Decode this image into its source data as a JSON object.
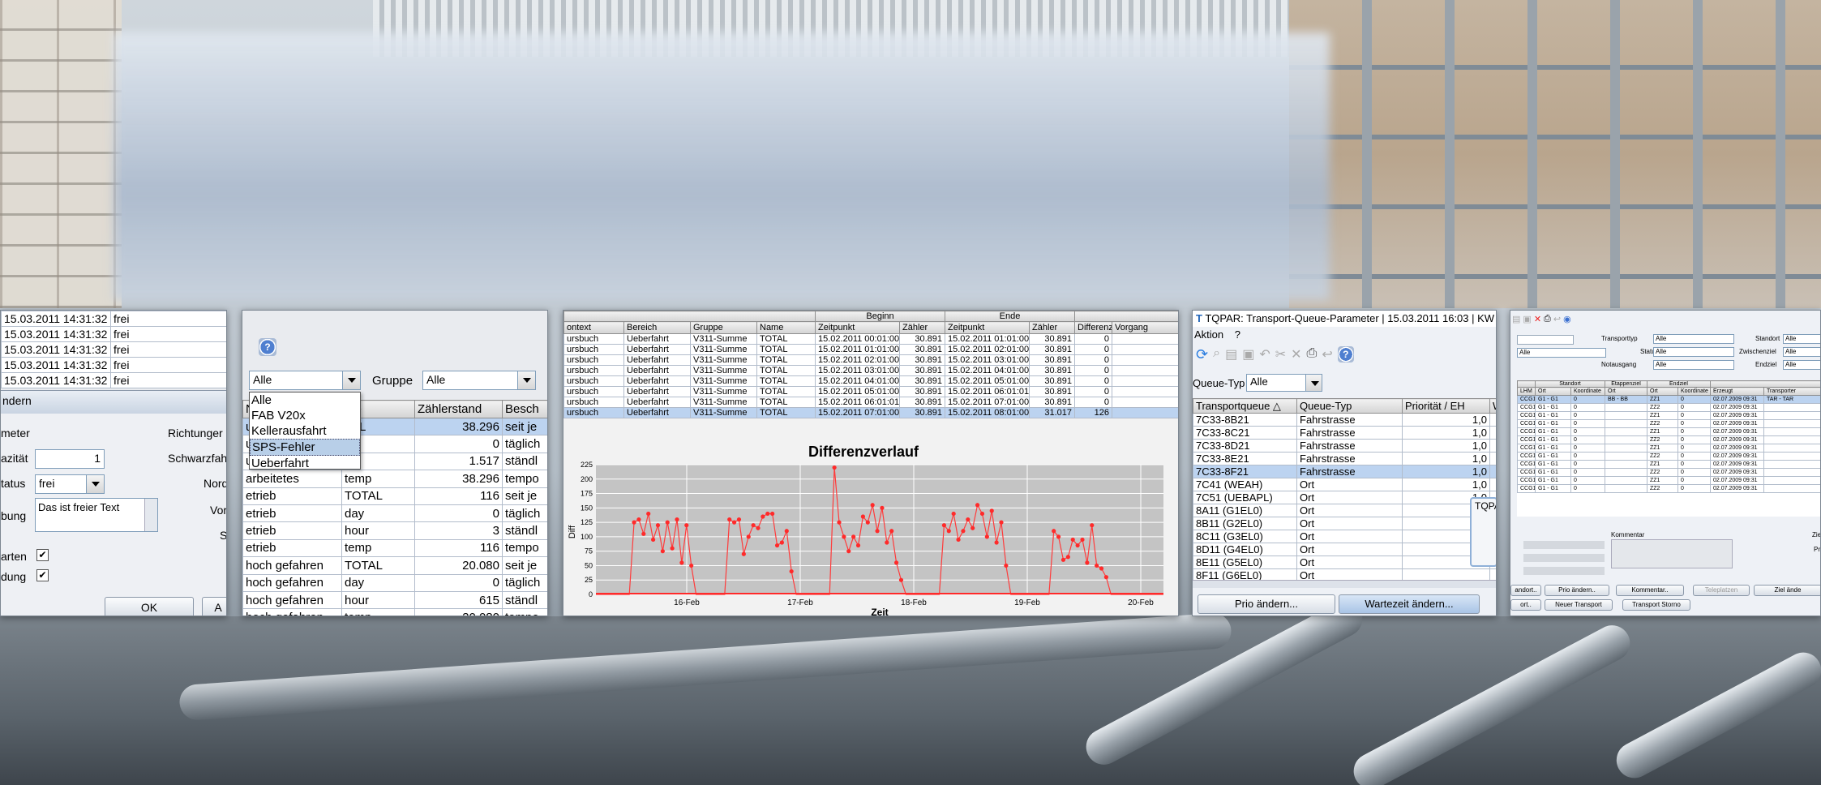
{
  "w1": {
    "top_rows": [
      {
        "date": "15.03.2011 14:31:32",
        "s": "frei"
      },
      {
        "date": "15.03.2011 14:31:32",
        "s": "frei"
      },
      {
        "date": "15.03.2011 14:31:32",
        "s": "frei"
      },
      {
        "date": "15.03.2011 14:31:32",
        "s": "frei"
      },
      {
        "date": "15.03.2011 14:31:32",
        "s": "frei"
      }
    ],
    "dialog_title": "ndern",
    "labels": {
      "meter": "meter",
      "kap": "azität",
      "status": "tatus",
      "bung": "bung",
      "arten": "arten",
      "dung": "dung",
      "richtung": "Richtunger",
      "schwarz": "Schwarzfah",
      "nord": "Nord",
      "vor": "Vor",
      "s": "S"
    },
    "kap_value": "1",
    "status_value": "frei",
    "text_value": "Das ist freier Text",
    "ok": "OK",
    "a": "A"
  },
  "w2": {
    "combo1": "Alle",
    "gruppe_label": "Gruppe",
    "combo2": "Alle",
    "dropdown": [
      "Alle",
      "FAB V20x",
      "Kellerausfahrt",
      "SPS-Fehler",
      "Ueberfahrt"
    ],
    "dropdown_selected": 3,
    "headers": [
      "Na",
      "me",
      "Zählerstand",
      "Besch"
    ],
    "rows": [
      [
        "ue",
        "TAL",
        "38.296",
        "seit je"
      ],
      [
        "ue",
        "",
        "0",
        "täglich"
      ],
      [
        "ue",
        "ur",
        "1.517",
        "ständl"
      ],
      [
        "arbeitetes",
        "temp",
        "38.296",
        "tempo"
      ],
      [
        "etrieb",
        "TOTAL",
        "116",
        "seit je"
      ],
      [
        "etrieb",
        "day",
        "0",
        "täglich"
      ],
      [
        "etrieb",
        "hour",
        "3",
        "ständl"
      ],
      [
        "etrieb",
        "temp",
        "116",
        "tempo"
      ],
      [
        "hoch gefahren",
        "TOTAL",
        "20.080",
        "seit je"
      ],
      [
        "hoch gefahren",
        "day",
        "0",
        "täglich"
      ],
      [
        "hoch gefahren",
        "hour",
        "615",
        "ständl"
      ],
      [
        "hoch gefahren",
        "temp",
        "20.080",
        "tempo"
      ]
    ]
  },
  "w3": {
    "group_headers": [
      "Beginn",
      "Ende"
    ],
    "headers": [
      "ontext",
      "Bereich",
      "Gruppe",
      "Name",
      "Zeitpunkt",
      "Zähler",
      "Zeitpunkt",
      "Zähler",
      "Differenz",
      "Vorgang"
    ],
    "rows": [
      [
        "ursbuch",
        "Ueberfahrt",
        "V311-Summe",
        "TOTAL",
        "15.02.2011 00:01:00",
        "30.891",
        "15.02.2011 01:01:00",
        "30.891",
        "0",
        ""
      ],
      [
        "ursbuch",
        "Ueberfahrt",
        "V311-Summe",
        "TOTAL",
        "15.02.2011 01:01:00",
        "30.891",
        "15.02.2011 02:01:00",
        "30.891",
        "0",
        ""
      ],
      [
        "ursbuch",
        "Ueberfahrt",
        "V311-Summe",
        "TOTAL",
        "15.02.2011 02:01:00",
        "30.891",
        "15.02.2011 03:01:00",
        "30.891",
        "0",
        ""
      ],
      [
        "ursbuch",
        "Ueberfahrt",
        "V311-Summe",
        "TOTAL",
        "15.02.2011 03:01:00",
        "30.891",
        "15.02.2011 04:01:00",
        "30.891",
        "0",
        ""
      ],
      [
        "ursbuch",
        "Ueberfahrt",
        "V311-Summe",
        "TOTAL",
        "15.02.2011 04:01:00",
        "30.891",
        "15.02.2011 05:01:00",
        "30.891",
        "0",
        ""
      ],
      [
        "ursbuch",
        "Ueberfahrt",
        "V311-Summe",
        "TOTAL",
        "15.02.2011 05:01:00",
        "30.891",
        "15.02.2011 06:01:01",
        "30.891",
        "0",
        ""
      ],
      [
        "ursbuch",
        "Ueberfahrt",
        "V311-Summe",
        "TOTAL",
        "15.02.2011 06:01:01",
        "30.891",
        "15.02.2011 07:01:00",
        "30.891",
        "0",
        ""
      ],
      [
        "ursbuch",
        "Ueberfahrt",
        "V311-Summe",
        "TOTAL",
        "15.02.2011 07:01:00",
        "30.891",
        "15.02.2011 08:01:00",
        "31.017",
        "126",
        ""
      ]
    ]
  },
  "chart_data": {
    "type": "line",
    "title": "Differenzverlauf",
    "xlabel": "Zeit",
    "ylabel": "Diff",
    "ylim": [
      0,
      225
    ],
    "yticks": [
      0,
      25,
      50,
      75,
      100,
      125,
      150,
      175,
      200,
      225
    ],
    "xticks": [
      {
        "label": "16-Feb",
        "day": 1
      },
      {
        "label": "17-Feb",
        "day": 2
      },
      {
        "label": "18-Feb",
        "day": 3
      },
      {
        "label": "19-Feb",
        "day": 4
      },
      {
        "label": "20-Feb",
        "day": 5
      }
    ],
    "series": [
      {
        "values": [
          0,
          0,
          0,
          0,
          0,
          0,
          0,
          0,
          125,
          130,
          105,
          140,
          95,
          120,
          75,
          125,
          80,
          130,
          55,
          120,
          50,
          0,
          0,
          0,
          0,
          0,
          0,
          0,
          130,
          125,
          130,
          70,
          100,
          120,
          115,
          135,
          140,
          140,
          85,
          90,
          110,
          40,
          0,
          0,
          0,
          0,
          0,
          0,
          0,
          0,
          220,
          125,
          100,
          75,
          100,
          85,
          135,
          125,
          155,
          110,
          150,
          90,
          110,
          55,
          25,
          0,
          0,
          0,
          0,
          0,
          0,
          0,
          0,
          120,
          110,
          140,
          95,
          110,
          130,
          115,
          155,
          140,
          100,
          145,
          90,
          125,
          50,
          0,
          0,
          0,
          0,
          0,
          0,
          0,
          0,
          0,
          110,
          100,
          60,
          65,
          95,
          85,
          95,
          55,
          120,
          50,
          45,
          30,
          0,
          0,
          0,
          0,
          0,
          0,
          0,
          0,
          0,
          0,
          0,
          0
        ]
      }
    ],
    "grid": true
  },
  "w4": {
    "title": "TQPAR: Transport-Queue-Parameter | 15.03.2011 16:03 | KW 11",
    "menu": [
      "Aktion",
      "?"
    ],
    "filter_label": "Queue-Typ",
    "filter_value": "Alle",
    "headers": [
      "Transportqueue △",
      "Queue-Typ",
      "Priorität / EH",
      "W"
    ],
    "rows": [
      [
        "7C33-8B21",
        "Fahrstrasse",
        "1,0"
      ],
      [
        "7C33-8C21",
        "Fahrstrasse",
        "1,0"
      ],
      [
        "7C33-8D21",
        "Fahrstrasse",
        "1,0"
      ],
      [
        "7C33-8E21",
        "Fahrstrasse",
        "1,0"
      ],
      [
        "7C33-8F21",
        "Fahrstrasse",
        "1,0"
      ],
      [
        "7C41 (WEAH)",
        "Ort",
        "1,0"
      ],
      [
        "7C51 (UEBAPL)",
        "Ort",
        "1,0"
      ],
      [
        "8A11 (G1EL0)",
        "Ort",
        ""
      ],
      [
        "8B11 (G2EL0)",
        "Ort",
        ""
      ],
      [
        "8C11 (G3EL0)",
        "Ort",
        ""
      ],
      [
        "8D11 (G4EL0)",
        "Ort",
        ""
      ],
      [
        "8E11 (G5EL0)",
        "Ort",
        ""
      ],
      [
        "8F11 (G6EL0)",
        "Ort",
        ""
      ]
    ],
    "selected_row": 4,
    "popup_title": "TQPA",
    "btn1": "Prio ändern...",
    "btn2": "Wartezeit ändern..."
  },
  "w5": {
    "filters": [
      {
        "label": "Transporttyp",
        "value": "Alle"
      },
      {
        "label": "Status",
        "value": "Alle"
      },
      {
        "label": "Notausgang",
        "value": "Alle"
      }
    ],
    "filters_right": [
      {
        "label": "Standort",
        "value": "Alle"
      },
      {
        "label": "Zwischenziel",
        "value": "Alle"
      },
      {
        "label": "Endziel",
        "value": "Alle"
      }
    ],
    "left_combo": "Alle",
    "group_headers": [
      "Standort",
      "Etappenziel",
      "Endziel"
    ],
    "headers": [
      "LHM",
      "Ort",
      "Koordinate",
      "Ort",
      "Ort",
      "Koordinate",
      "Erzeugt",
      "Transporter"
    ],
    "rows": [
      [
        "CCG1",
        "G1 - G1",
        "0",
        "BB - BB",
        "ZZ1",
        "0",
        "02.07.2009 09:31",
        "TAR - TAR"
      ],
      [
        "CCG1",
        "G1 - G1",
        "0",
        "",
        "ZZ2",
        "0",
        "02.07.2009 09:31",
        ""
      ],
      [
        "CCG1",
        "G1 - G1",
        "0",
        "",
        "ZZ1",
        "0",
        "02.07.2009 09:31",
        ""
      ],
      [
        "CCG1",
        "G1 - G1",
        "0",
        "",
        "ZZ2",
        "0",
        "02.07.2009 09:31",
        ""
      ],
      [
        "CCG1",
        "G1 - G1",
        "0",
        "",
        "ZZ1",
        "0",
        "02.07.2009 09:31",
        ""
      ],
      [
        "CCG1",
        "G1 - G1",
        "0",
        "",
        "ZZ2",
        "0",
        "02.07.2009 09:31",
        ""
      ],
      [
        "CCG1",
        "G1 - G1",
        "0",
        "",
        "ZZ1",
        "0",
        "02.07.2009 09:31",
        ""
      ],
      [
        "CCG1",
        "G1 - G1",
        "0",
        "",
        "ZZ2",
        "0",
        "02.07.2009 09:31",
        ""
      ],
      [
        "CCG1",
        "G1 - G1",
        "0",
        "",
        "ZZ1",
        "0",
        "02.07.2009 09:31",
        ""
      ],
      [
        "CCG1",
        "G1 - G1",
        "0",
        "",
        "ZZ2",
        "0",
        "02.07.2009 09:31",
        ""
      ],
      [
        "CCG1",
        "G1 - G1",
        "0",
        "",
        "ZZ1",
        "0",
        "02.07.2009 09:31",
        ""
      ],
      [
        "CCG1",
        "G1 - G1",
        "0",
        "",
        "ZZ2",
        "0",
        "02.07.2009 09:31",
        ""
      ]
    ],
    "kommentar": "Kommentar",
    "zie": "Zie",
    "pri": "Pri",
    "buttons": [
      "andort..",
      "Prio ändern..",
      "Kommentar..",
      "Teleplatzen",
      "Ziel ände"
    ],
    "buttons2": [
      "ort..",
      "Neuer Transport",
      "Transport Storno"
    ]
  }
}
